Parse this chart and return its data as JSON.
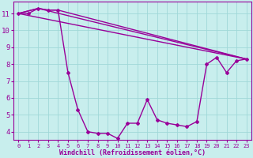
{
  "xlabel": "Windchill (Refroidissement éolien,°C)",
  "background_color": "#c8eeed",
  "grid_color": "#a0d8d8",
  "line_color": "#990099",
  "xlim": [
    -0.5,
    23.5
  ],
  "ylim": [
    3.5,
    11.7
  ],
  "xticks": [
    0,
    1,
    2,
    3,
    4,
    5,
    6,
    7,
    8,
    9,
    10,
    11,
    12,
    13,
    14,
    15,
    16,
    17,
    18,
    19,
    20,
    21,
    22,
    23
  ],
  "yticks": [
    4,
    5,
    6,
    7,
    8,
    9,
    10,
    11
  ],
  "series1_x": [
    0,
    1,
    2,
    3,
    4,
    5,
    6,
    7,
    8,
    9,
    10,
    11,
    12,
    13,
    14,
    15,
    16,
    17,
    18,
    19,
    20,
    21,
    22,
    23
  ],
  "series1_y": [
    11.0,
    11.0,
    11.3,
    11.2,
    11.2,
    7.5,
    5.3,
    4.0,
    3.9,
    3.9,
    3.6,
    4.5,
    4.5,
    5.9,
    4.7,
    4.5,
    4.4,
    4.3,
    4.6,
    8.0,
    8.4,
    7.5,
    8.2,
    8.3
  ],
  "series2_x": [
    0,
    2,
    3,
    4,
    23
  ],
  "series2_y": [
    11.0,
    11.3,
    11.2,
    11.2,
    8.3
  ],
  "series3_x": [
    0,
    23
  ],
  "series3_y": [
    11.0,
    8.3
  ],
  "series4_x": [
    0,
    2,
    23
  ],
  "series4_y": [
    11.0,
    11.3,
    8.3
  ]
}
